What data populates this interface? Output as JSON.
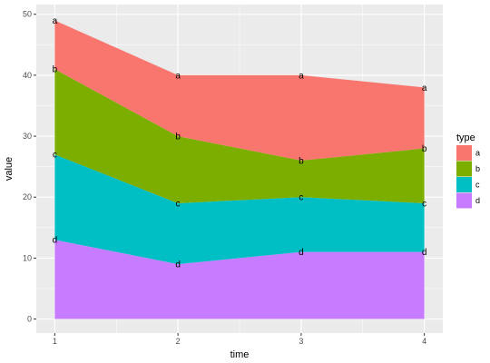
{
  "chart_data": {
    "type": "area",
    "stacked": true,
    "xlabel": "time",
    "ylabel": "value",
    "x": [
      1,
      2,
      3,
      4
    ],
    "x_ticks": [
      "1",
      "2",
      "3",
      "4"
    ],
    "y_ticks": [
      "0",
      "10",
      "20",
      "30",
      "40",
      "50"
    ],
    "ylim": [
      0,
      50
    ],
    "legend_title": "type",
    "legend_position": "right",
    "grid": true,
    "series": [
      {
        "name": "a",
        "color": "#F8766D",
        "values": [
          8,
          10,
          14,
          10
        ]
      },
      {
        "name": "b",
        "color": "#7CAE00",
        "values": [
          14,
          11,
          6,
          9
        ]
      },
      {
        "name": "c",
        "color": "#00BFC4",
        "values": [
          14,
          10,
          9,
          8
        ]
      },
      {
        "name": "d",
        "color": "#C77CFF",
        "values": [
          13,
          9,
          11,
          11
        ]
      }
    ],
    "panel_background": "#EBEBEB",
    "grid_color": "#FFFFFF"
  }
}
